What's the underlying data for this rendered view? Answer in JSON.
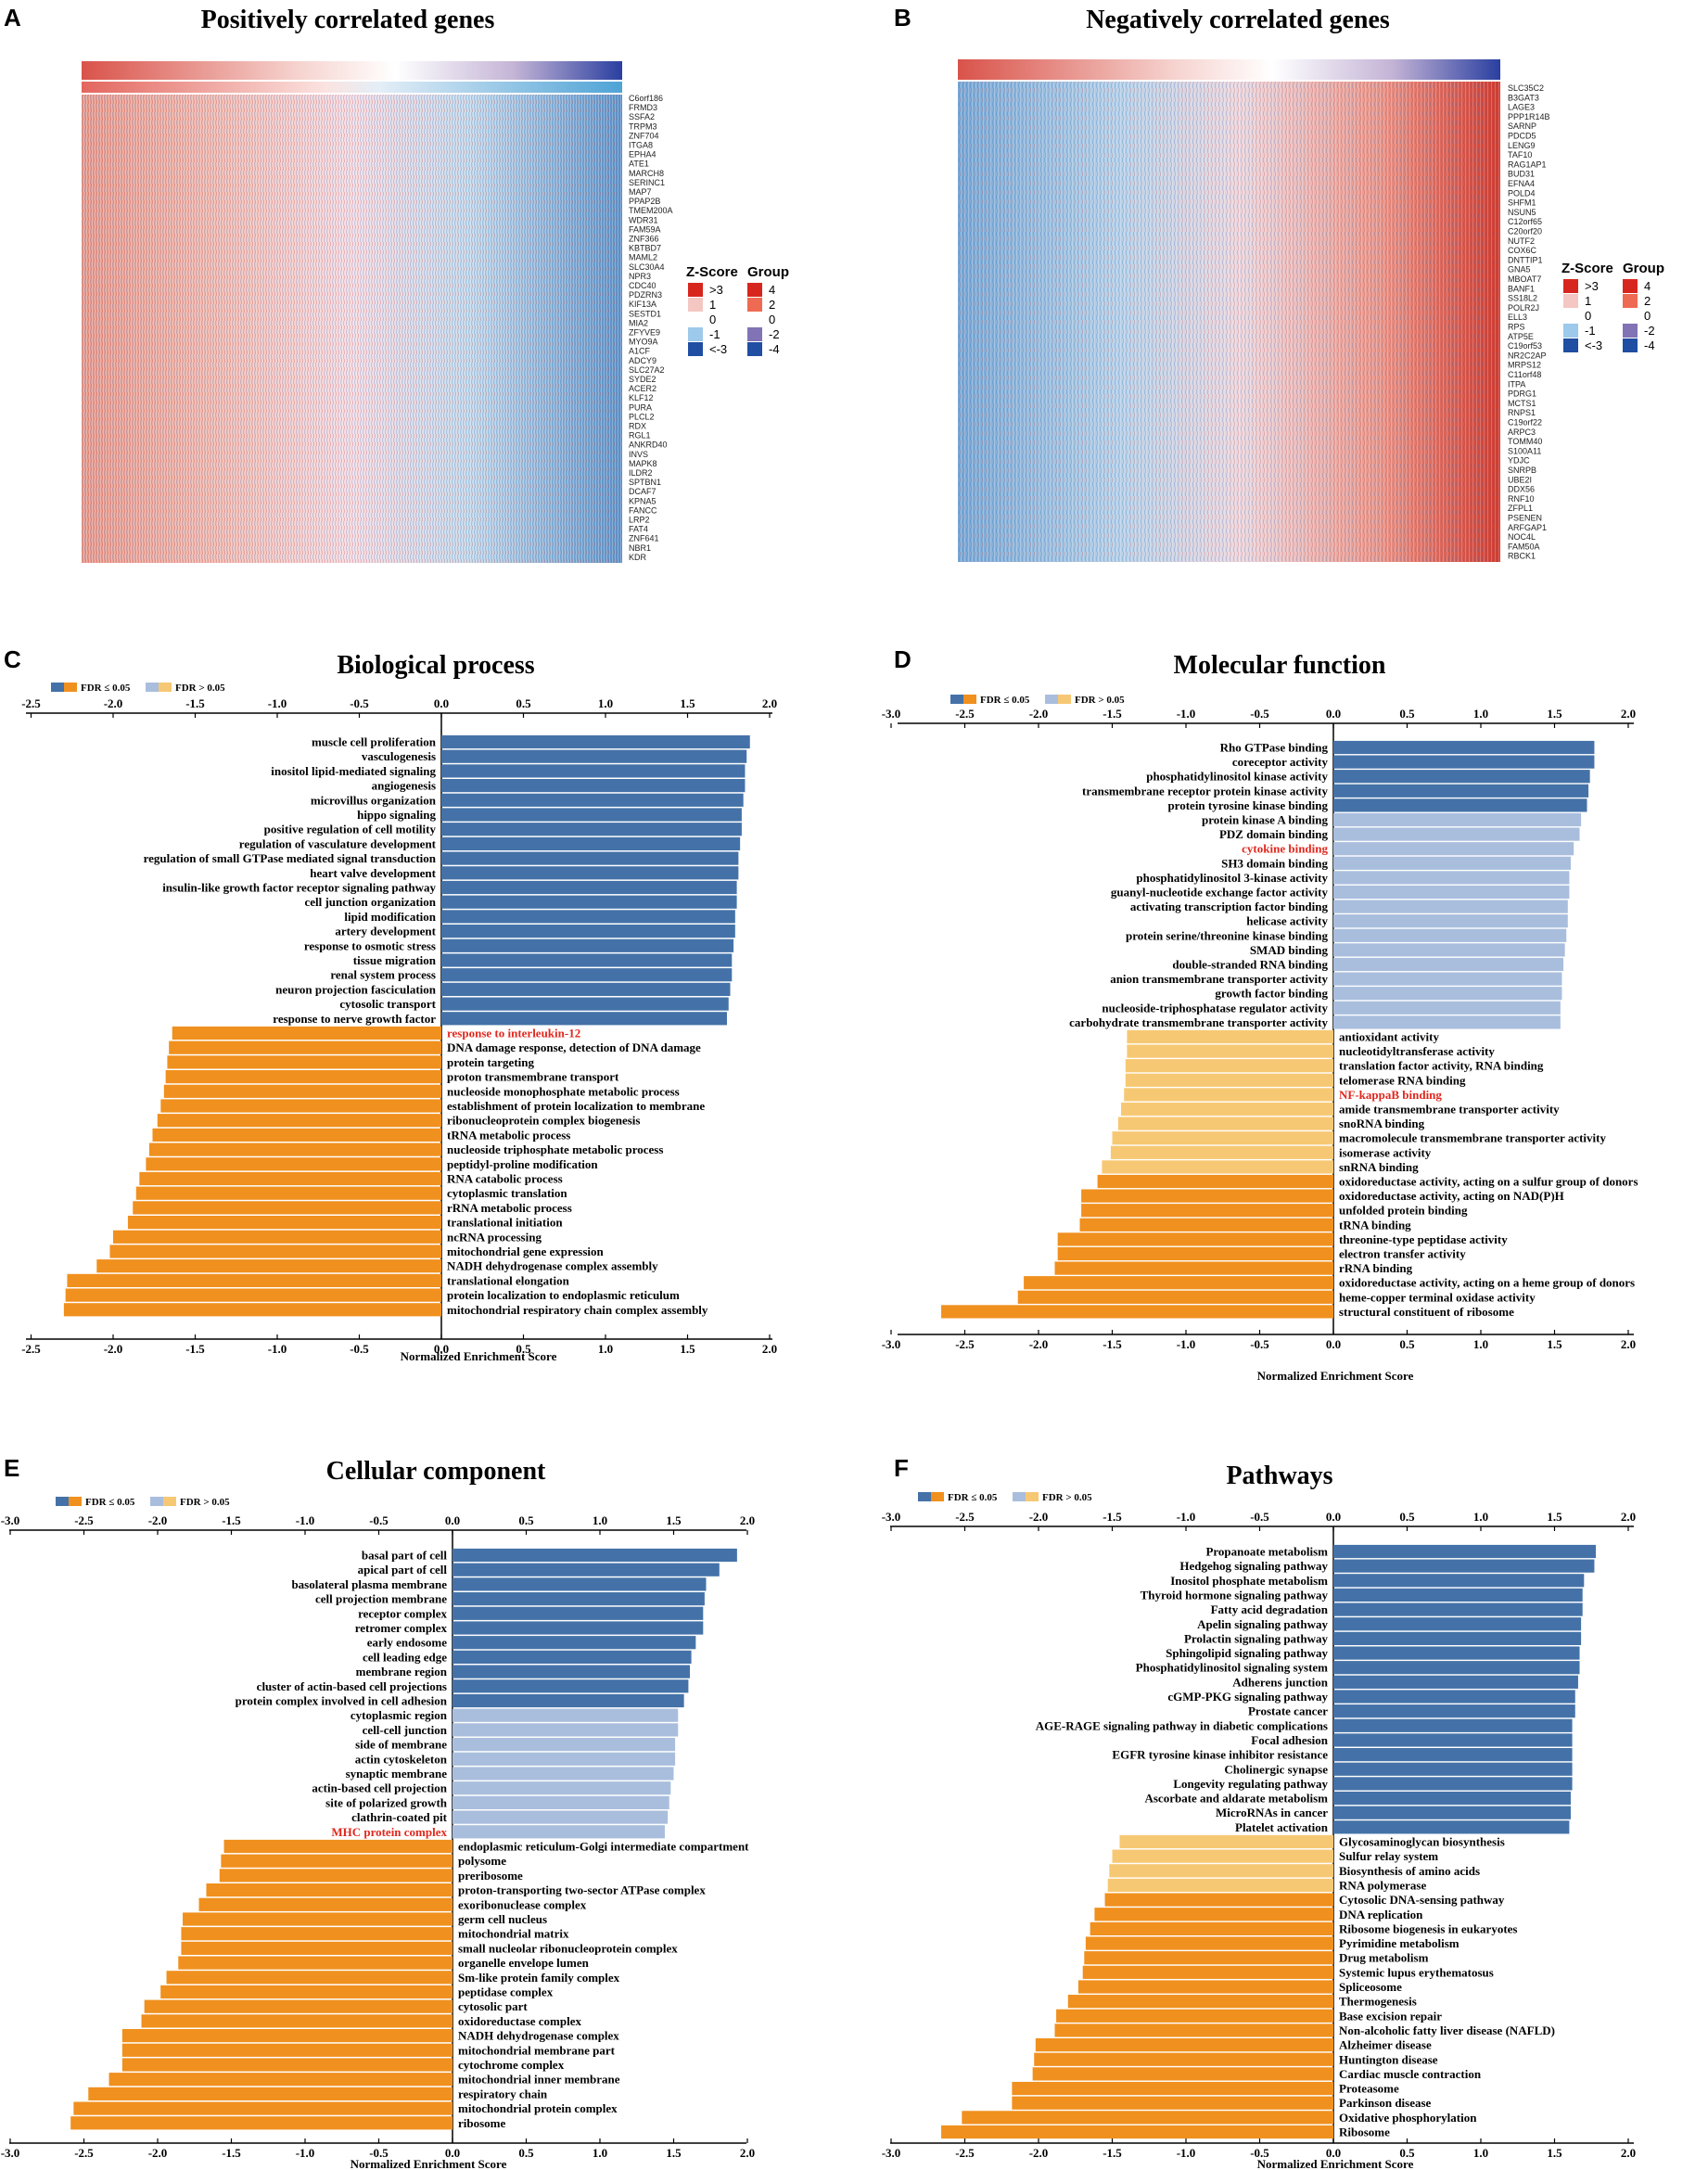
{
  "figure_colors": {
    "blue": "#4472a8",
    "light_blue": "#a9bedd",
    "orange": "#f0901e",
    "light_orange": "#f7c873",
    "red_label": "#e0281e"
  },
  "chart_data": [
    {
      "panel": "A",
      "type": "heatmap",
      "title": "Positively correlated genes",
      "genes": [
        "C6orf186",
        "FRMD3",
        "SSFA2",
        "TRPM3",
        "ZNF704",
        "ITGA8",
        "EPHA4",
        "ATE1",
        "MARCH8",
        "SERINC1",
        "MAP7",
        "PPAP2B",
        "TMEM200A",
        "WDR31",
        "FAM59A",
        "ZNF366",
        "KBTBD7",
        "MAML2",
        "SLC30A4",
        "NPR3",
        "CDC40",
        "PDZRN3",
        "KIF13A",
        "SESTD1",
        "MIA2",
        "ZFYVE9",
        "MYO9A",
        "A1CF",
        "ADCY9",
        "SLC27A2",
        "SYDE2",
        "ACER2",
        "KLF12",
        "PURA",
        "PLCL2",
        "RDX",
        "RGL1",
        "ANKRD40",
        "INVS",
        "MAPK8",
        "ILDR2",
        "SPTBN1",
        "DCAF7",
        "KPNA5",
        "FANCC",
        "LRP2",
        "FAT4",
        "ZNF641",
        "NBR1",
        "KDR"
      ],
      "legend": {
        "zscore_title": "Z-Score",
        "zscore_labels": [
          ">3",
          "1",
          "0",
          "-1",
          "<-3"
        ],
        "group_title": "Group",
        "group_labels": [
          "4",
          "2",
          "0",
          "-2",
          "-4"
        ]
      }
    },
    {
      "panel": "B",
      "type": "heatmap",
      "title": "Negatively correlated genes",
      "genes": [
        "SLC35C2",
        "B3GAT3",
        "LAGE3",
        "PPP1R14B",
        "SARNP",
        "PDCD5",
        "LENG9",
        "TAF10",
        "RAG1AP1",
        "BUD31",
        "EFNA4",
        "POLD4",
        "SHFM1",
        "NSUN5",
        "C12orf65",
        "C20orf20",
        "NUTF2",
        "COX6C",
        "DNTTIP1",
        "GNA5",
        "MBOAT7",
        "BANF1",
        "SS18L2",
        "POLR2J",
        "ELL3",
        "RPS",
        "ATP5E",
        "C19orf53",
        "NR2C2AP",
        "MRPS12",
        "C11orf48",
        "ITPA",
        "PDRG1",
        "MCTS1",
        "RNPS1",
        "C19orf22",
        "ARPC3",
        "TOMM40",
        "S100A11",
        "YDJC",
        "SNRPB",
        "UBE2I",
        "DDX56",
        "RNF10",
        "ZFPL1",
        "PSENEN",
        "ARFGAP1",
        "NOC4L",
        "FAM50A",
        "RBCK1"
      ],
      "legend": {
        "zscore_title": "Z-Score",
        "zscore_labels": [
          ">3",
          "1",
          "0",
          "-1",
          "<-3"
        ],
        "group_title": "Group",
        "group_labels": [
          "4",
          "2",
          "0",
          "-2",
          "-4"
        ]
      }
    },
    {
      "panel": "C",
      "type": "bar",
      "orientation": "horizontal",
      "title": "Biological process",
      "xlabel": "Normalized Enrichment Score",
      "xlim": [
        -2.5,
        2.0
      ],
      "ticks": [
        -2.5,
        -2.0,
        -1.5,
        -1.0,
        -0.5,
        0.0,
        0.5,
        1.0,
        1.5,
        2.0
      ],
      "legend": [
        "FDR ≤ 0.05",
        "FDR > 0.05"
      ],
      "categories": [
        "muscle cell proliferation",
        "vasculogenesis",
        "inositol lipid-mediated signaling",
        "angiogenesis",
        "microvillus organization",
        "hippo signaling",
        "positive regulation of cell motility",
        "regulation of vasculature development",
        "regulation of small GTPase mediated signal transduction",
        "heart valve development",
        "insulin-like growth factor receptor signaling pathway",
        "cell junction organization",
        "lipid modification",
        "artery development",
        "response to osmotic stress",
        "tissue migration",
        "renal system process",
        "neuron projection fasciculation",
        "cytosolic transport",
        "response to nerve growth factor",
        "response to interleukin-12",
        "DNA damage response, detection of DNA damage",
        "protein targeting",
        "proton transmembrane transport",
        "nucleoside monophosphate metabolic process",
        "establishment of protein localization to membrane",
        "ribonucleoprotein complex biogenesis",
        "tRNA metabolic process",
        "nucleoside triphosphate metabolic process",
        "peptidyl-proline modification",
        "RNA catabolic process",
        "cytoplasmic translation",
        "rRNA metabolic process",
        "translational initiation",
        "ncRNA processing",
        "mitochondrial gene expression",
        "NADH dehydrogenase complex assembly",
        "translational elongation",
        "protein localization to endoplasmic reticulum",
        "mitochondrial respiratory chain complex assembly"
      ],
      "values": [
        1.88,
        1.86,
        1.85,
        1.85,
        1.84,
        1.83,
        1.83,
        1.82,
        1.81,
        1.81,
        1.8,
        1.8,
        1.79,
        1.79,
        1.78,
        1.77,
        1.77,
        1.76,
        1.75,
        1.74,
        -1.64,
        -1.66,
        -1.67,
        -1.68,
        -1.69,
        -1.71,
        -1.73,
        -1.76,
        -1.78,
        -1.8,
        -1.84,
        -1.86,
        -1.88,
        -1.91,
        -2.0,
        -2.02,
        -2.1,
        -2.28,
        -2.29,
        -2.3
      ],
      "fdr_sig": [
        true,
        true,
        true,
        true,
        true,
        true,
        true,
        true,
        true,
        true,
        true,
        true,
        true,
        true,
        true,
        true,
        true,
        true,
        true,
        true,
        true,
        true,
        true,
        true,
        true,
        true,
        true,
        true,
        true,
        true,
        true,
        true,
        true,
        true,
        true,
        true,
        true,
        true,
        true,
        true
      ],
      "highlight": [
        "response to interleukin-12"
      ]
    },
    {
      "panel": "D",
      "type": "bar",
      "orientation": "horizontal",
      "title": "Molecular function",
      "xlabel": "Normalized Enrichment Score",
      "xlim": [
        -3.0,
        2.0
      ],
      "ticks": [
        -3.0,
        -2.5,
        -2.0,
        -1.5,
        -1.0,
        -0.5,
        0.0,
        0.5,
        1.0,
        1.5,
        2.0
      ],
      "legend": [
        "FDR ≤ 0.05",
        "FDR > 0.05"
      ],
      "categories": [
        "Rho GTPase binding",
        "coreceptor activity",
        "phosphatidylinositol kinase activity",
        "transmembrane receptor protein kinase activity",
        "protein tyrosine kinase binding",
        "protein kinase A binding",
        "PDZ domain binding",
        "cytokine binding",
        "SH3 domain binding",
        "phosphatidylinositol 3-kinase activity",
        "guanyl-nucleotide exchange factor activity",
        "activating transcription factor binding",
        "helicase activity",
        "protein serine/threonine kinase binding",
        "SMAD binding",
        "double-stranded RNA binding",
        "anion transmembrane transporter activity",
        "growth factor binding",
        "nucleoside-triphosphatase regulator activity",
        "carbohydrate transmembrane transporter activity",
        "antioxidant activity",
        "nucleotidyltransferase activity",
        "translation factor activity, RNA binding",
        "telomerase RNA binding",
        "NF-kappaB binding",
        "amide transmembrane transporter activity",
        "snoRNA binding",
        "macromolecule transmembrane transporter activity",
        "isomerase activity",
        "snRNA binding",
        "oxidoreductase activity, acting on a sulfur group of donors",
        "oxidoreductase activity, acting on NAD(P)H",
        "unfolded protein binding",
        "tRNA binding",
        "threonine-type peptidase activity",
        "electron transfer activity",
        "rRNA binding",
        "oxidoreductase activity, acting on a heme group of donors",
        "heme-copper terminal oxidase activity",
        "structural constituent of ribosome"
      ],
      "values": [
        1.77,
        1.77,
        1.74,
        1.73,
        1.72,
        1.68,
        1.67,
        1.63,
        1.61,
        1.6,
        1.6,
        1.59,
        1.59,
        1.58,
        1.57,
        1.56,
        1.55,
        1.55,
        1.54,
        1.54,
        -1.4,
        -1.4,
        -1.41,
        -1.41,
        -1.42,
        -1.44,
        -1.46,
        -1.5,
        -1.51,
        -1.57,
        -1.6,
        -1.71,
        -1.71,
        -1.72,
        -1.87,
        -1.87,
        -1.89,
        -2.1,
        -2.14,
        -2.66
      ],
      "fdr_sig": [
        true,
        true,
        true,
        true,
        true,
        false,
        false,
        false,
        false,
        false,
        false,
        false,
        false,
        false,
        false,
        false,
        false,
        false,
        false,
        false,
        false,
        false,
        false,
        false,
        false,
        false,
        false,
        false,
        false,
        false,
        true,
        true,
        true,
        true,
        true,
        true,
        true,
        true,
        true,
        true
      ],
      "highlight": [
        "cytokine binding",
        "NF-kappaB binding"
      ]
    },
    {
      "panel": "E",
      "type": "bar",
      "orientation": "horizontal",
      "title": "Cellular component",
      "xlabel": "Normalized Enrichment Score",
      "xlim": [
        -3.0,
        2.0
      ],
      "ticks": [
        -3.0,
        -2.5,
        -2.0,
        -1.5,
        -1.0,
        -0.5,
        0.0,
        0.5,
        1.0,
        1.5,
        2.0
      ],
      "legend": [
        "FDR ≤ 0.05",
        "FDR > 0.05"
      ],
      "categories": [
        "basal part of cell",
        "apical part of cell",
        "basolateral plasma membrane",
        "cell projection membrane",
        "receptor complex",
        "retromer complex",
        "early endosome",
        "cell leading edge",
        "membrane region",
        "cluster of actin-based cell projections",
        "protein complex involved in cell adhesion",
        "cytoplasmic region",
        "cell-cell junction",
        "side of membrane",
        "actin cytoskeleton",
        "synaptic membrane",
        "actin-based cell projection",
        "site of polarized growth",
        "clathrin-coated pit",
        "MHC protein complex",
        "endoplasmic reticulum-Golgi intermediate compartment",
        "polysome",
        "preribosome",
        "proton-transporting two-sector ATPase complex",
        "exoribonuclease complex",
        "germ cell nucleus",
        "mitochondrial matrix",
        "small nucleolar ribonucleoprotein complex",
        "organelle envelope lumen",
        "Sm-like protein family complex",
        "peptidase complex",
        "cytosolic part",
        "oxidoreductase complex",
        "NADH dehydrogenase complex",
        "mitochondrial membrane part",
        "cytochrome complex",
        "mitochondrial inner membrane",
        "respiratory chain",
        "mitochondrial protein complex",
        "ribosome"
      ],
      "values": [
        1.93,
        1.81,
        1.72,
        1.71,
        1.7,
        1.7,
        1.65,
        1.62,
        1.61,
        1.6,
        1.57,
        1.53,
        1.53,
        1.51,
        1.51,
        1.5,
        1.48,
        1.47,
        1.46,
        1.44,
        -1.55,
        -1.57,
        -1.58,
        -1.67,
        -1.72,
        -1.83,
        -1.84,
        -1.84,
        -1.86,
        -1.94,
        -1.98,
        -2.09,
        -2.11,
        -2.24,
        -2.24,
        -2.24,
        -2.33,
        -2.47,
        -2.57,
        -2.59
      ],
      "fdr_sig": [
        true,
        true,
        true,
        true,
        true,
        true,
        true,
        true,
        true,
        true,
        true,
        false,
        false,
        false,
        false,
        false,
        false,
        false,
        false,
        false,
        true,
        true,
        true,
        true,
        true,
        true,
        true,
        true,
        true,
        true,
        true,
        true,
        true,
        true,
        true,
        true,
        true,
        true,
        true,
        true
      ],
      "highlight": [
        "MHC protein complex"
      ]
    },
    {
      "panel": "F",
      "type": "bar",
      "orientation": "horizontal",
      "title": "Pathways",
      "xlabel": "Normalized Enrichment Score",
      "xlim": [
        -3.0,
        2.0
      ],
      "ticks": [
        -3.0,
        -2.5,
        -2.0,
        -1.5,
        -1.0,
        -0.5,
        0.0,
        0.5,
        1.0,
        1.5,
        2.0
      ],
      "legend": [
        "FDR ≤ 0.05",
        "FDR > 0.05"
      ],
      "categories": [
        "Propanoate metabolism",
        "Hedgehog signaling pathway",
        "Inositol phosphate metabolism",
        "Thyroid hormone signaling pathway",
        "Fatty acid degradation",
        "Apelin signaling pathway",
        "Prolactin signaling pathway",
        "Sphingolipid signaling pathway",
        "Phosphatidylinositol signaling system",
        "Adherens junction",
        "cGMP-PKG signaling pathway",
        "Prostate cancer",
        "AGE-RAGE signaling pathway in diabetic complications",
        "Focal adhesion",
        "EGFR tyrosine kinase inhibitor resistance",
        "Cholinergic synapse",
        "Longevity regulating pathway",
        "Ascorbate and aldarate metabolism",
        "MicroRNAs in cancer",
        "Platelet activation",
        "Glycosaminoglycan biosynthesis",
        "Sulfur relay system",
        "Biosynthesis of amino acids",
        "RNA polymerase",
        "Cytosolic DNA-sensing pathway",
        "DNA replication",
        "Ribosome biogenesis in eukaryotes",
        "Pyrimidine metabolism",
        "Drug metabolism",
        "Systemic lupus erythematosus",
        "Spliceosome",
        "Thermogenesis",
        "Base excision repair",
        "Non-alcoholic fatty liver disease (NAFLD)",
        "Alzheimer disease",
        "Huntington disease",
        "Cardiac muscle contraction",
        "Proteasome",
        "Parkinson disease",
        "Oxidative phosphorylation",
        "Ribosome"
      ],
      "values": [
        1.78,
        1.77,
        1.7,
        1.69,
        1.69,
        1.68,
        1.68,
        1.67,
        1.67,
        1.66,
        1.64,
        1.64,
        1.62,
        1.62,
        1.62,
        1.62,
        1.62,
        1.61,
        1.61,
        1.6,
        -1.45,
        -1.5,
        -1.52,
        -1.53,
        -1.55,
        -1.62,
        -1.65,
        -1.68,
        -1.69,
        -1.7,
        -1.73,
        -1.8,
        -1.88,
        -1.89,
        -2.02,
        -2.03,
        -2.04,
        -2.18,
        -2.18,
        -2.52,
        -2.66
      ],
      "fdr_sig": [
        true,
        true,
        true,
        true,
        true,
        true,
        true,
        true,
        true,
        true,
        true,
        true,
        true,
        true,
        true,
        true,
        true,
        true,
        true,
        true,
        false,
        false,
        false,
        false,
        true,
        true,
        true,
        true,
        true,
        true,
        true,
        true,
        true,
        true,
        true,
        true,
        true,
        true,
        true,
        true,
        true
      ],
      "highlight": []
    }
  ]
}
